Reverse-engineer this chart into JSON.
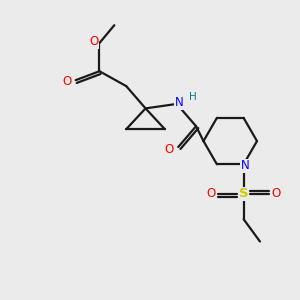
{
  "background_color": "#ebebeb",
  "bond_color": "#1a1a1a",
  "oxygen_color": "#ff0000",
  "nitrogen_color": "#0000ff",
  "sulfur_color": "#cccc00",
  "hydrogen_color": "#008080",
  "figsize": [
    3.0,
    3.0
  ],
  "dpi": 100,
  "xlim": [
    0,
    10
  ],
  "ylim": [
    0,
    10
  ]
}
